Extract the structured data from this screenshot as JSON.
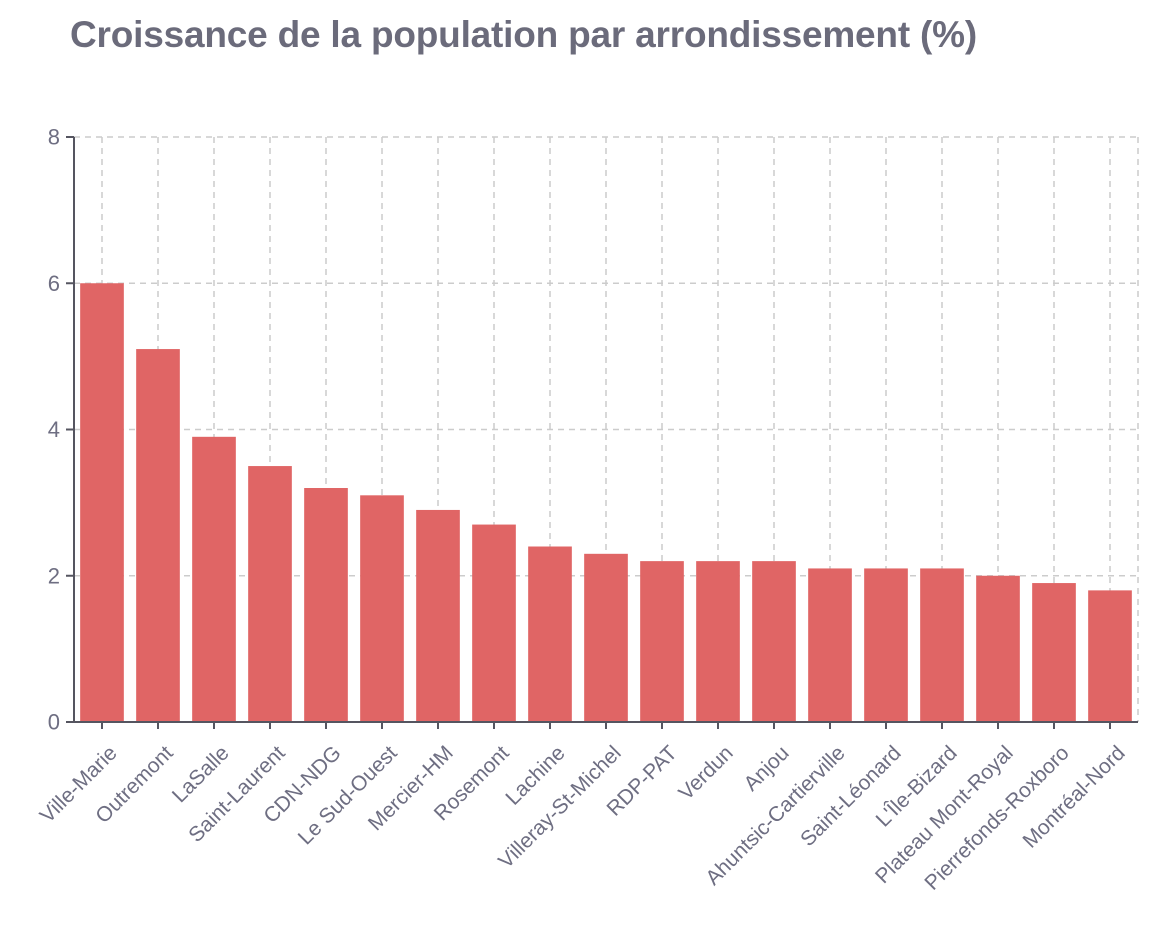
{
  "chart_data": {
    "type": "bar",
    "title": "Croissance de la population par arrondissement (%)",
    "xlabel": "",
    "ylabel": "",
    "categories": [
      "Ville-Marie",
      "Outremont",
      "LaSalle",
      "Saint-Laurent",
      "CDN-NDG",
      "Le Sud-Ouest",
      "Mercier-HM",
      "Rosemont",
      "Lachine",
      "Villeray-St-Michel",
      "RDP-PAT",
      "Verdun",
      "Anjou",
      "Ahuntsic-Cartierville",
      "Saint-Léonard",
      "L'Île-Bizard",
      "Plateau Mont-Royal",
      "Pierrefonds-Roxboro",
      "Montréal-Nord"
    ],
    "values": [
      6.0,
      5.1,
      3.9,
      3.5,
      3.2,
      3.1,
      2.9,
      2.7,
      2.4,
      2.3,
      2.2,
      2.2,
      2.2,
      2.1,
      2.1,
      2.1,
      2.0,
      1.9,
      1.8
    ],
    "ylim": [
      0,
      8
    ],
    "yticks": [
      "0",
      "2",
      "4",
      "6",
      "8"
    ],
    "grid": true,
    "legend": "none",
    "bar_color": "#e06565",
    "axis_color": "#555560",
    "grid_color": "#cccccc",
    "tick_label_color": "#6e6e82",
    "title_color": "#6b6b7b"
  }
}
